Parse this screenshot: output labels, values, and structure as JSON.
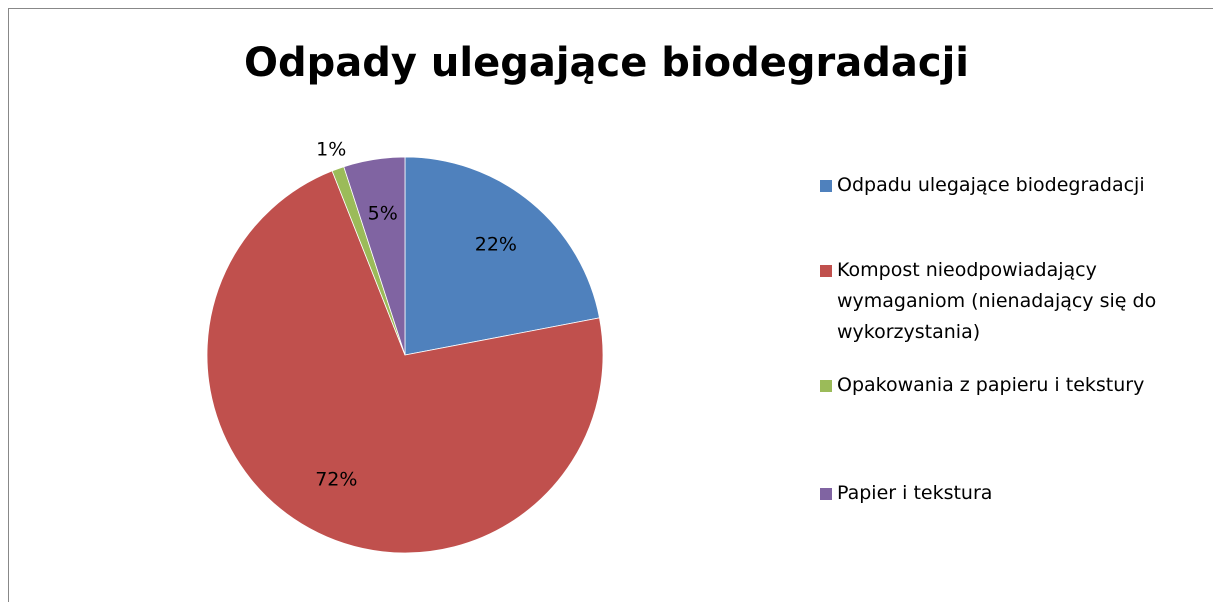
{
  "chart_data": {
    "type": "pie",
    "title": "Odpady ulegające biodegradacji",
    "categories": [
      "Odpadu ulegające biodegradacji",
      "Kompost nieodpowiadający wymaganiom (nienadający się do wykorzystania)",
      "Opakowania z papieru i tekstury",
      "Papier i tekstura"
    ],
    "values": [
      22,
      72,
      1,
      5
    ],
    "value_labels": [
      "22%",
      "72%",
      "1%",
      "5%"
    ],
    "colors": [
      "#4f81bd",
      "#c0504d",
      "#9bbb59",
      "#8064a2"
    ],
    "legend": "right"
  }
}
